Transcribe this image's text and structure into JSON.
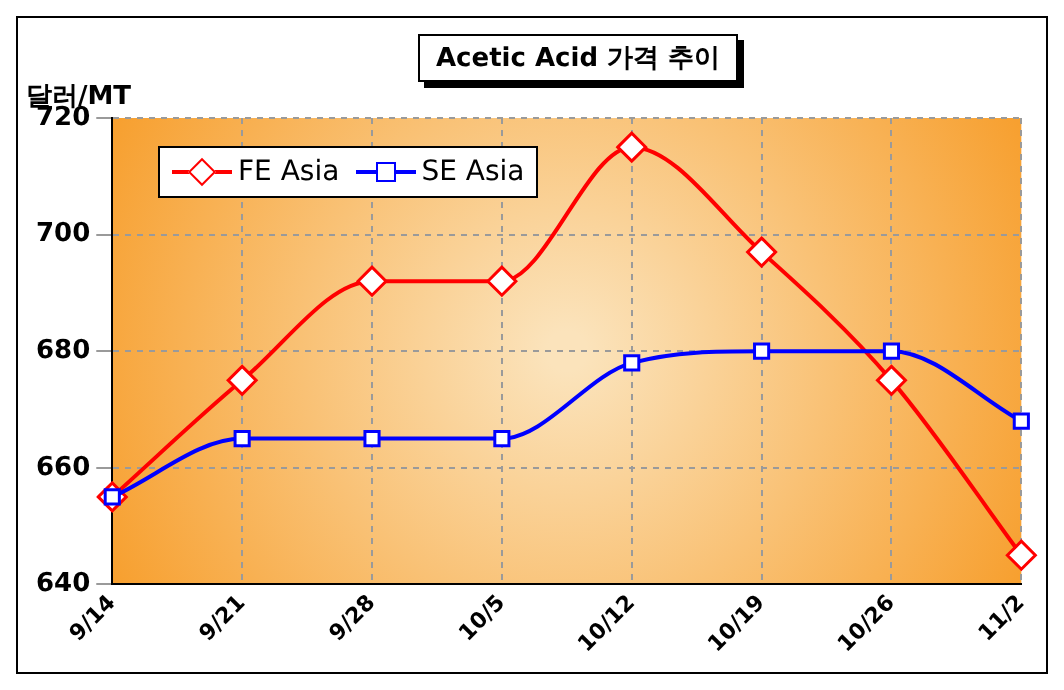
{
  "chart_data": {
    "type": "line",
    "title": "Acetic Acid 가격 추이",
    "ylabel": "달러/MT",
    "categories": [
      "9/14",
      "9/21",
      "9/28",
      "10/5",
      "10/12",
      "10/19",
      "10/26",
      "11/2"
    ],
    "series": [
      {
        "name": "FE Asia",
        "color": "#ff0000",
        "values": [
          655,
          675,
          692,
          692,
          715,
          697,
          675,
          645
        ],
        "marker": "diamond"
      },
      {
        "name": "SE Asia",
        "color": "#0000ff",
        "values": [
          655,
          665,
          665,
          665,
          678,
          680,
          680,
          668
        ],
        "marker": "square"
      }
    ],
    "ylim": [
      640,
      720
    ],
    "yticks": [
      640,
      660,
      680,
      700,
      720
    ],
    "grid": true,
    "legend": "top left"
  }
}
